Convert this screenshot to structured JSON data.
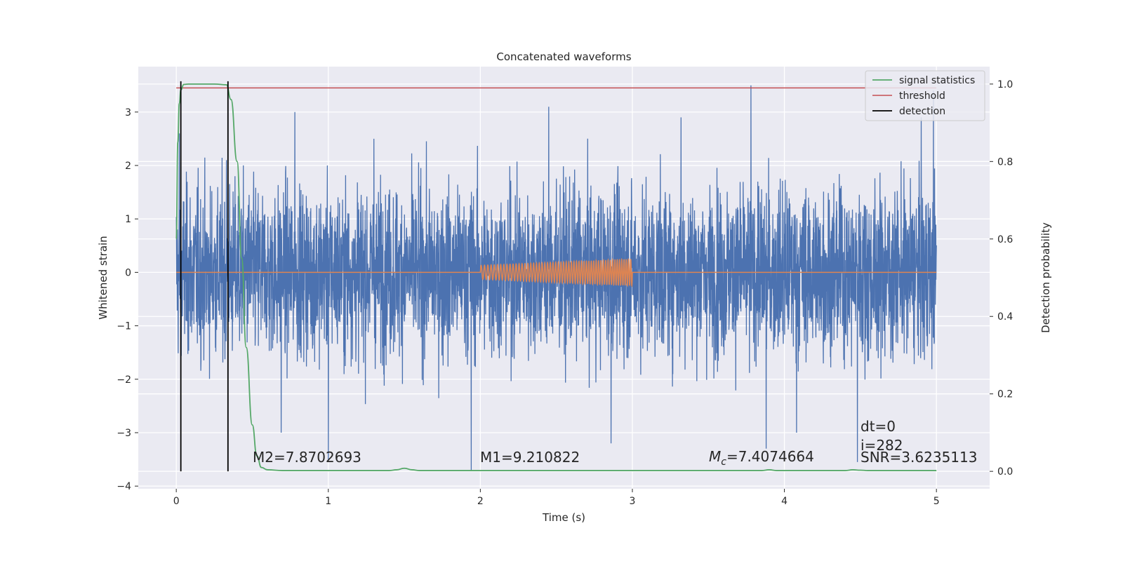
{
  "chart_data": {
    "type": "line",
    "title": "Concatenated waveforms",
    "xlabel": "Time (s)",
    "ylabel": "Whitened strain",
    "y2label": "Detection probability",
    "xlim": [
      -0.25,
      5.35
    ],
    "ylim": [
      -4.05,
      3.85
    ],
    "y2lim": [
      -0.045,
      1.045
    ],
    "xticks": [
      0,
      1,
      2,
      3,
      4,
      5
    ],
    "yticks": [
      -4,
      -3,
      -2,
      -1,
      0,
      1,
      2,
      3
    ],
    "y2ticks": [
      0.0,
      0.2,
      0.4,
      0.6,
      0.8,
      1.0
    ],
    "xtick_labels": [
      "0",
      "1",
      "2",
      "3",
      "4",
      "5"
    ],
    "ytick_labels": [
      "−4",
      "−3",
      "−2",
      "−1",
      "0",
      "1",
      "2",
      "3"
    ],
    "y2tick_labels": [
      "0.0",
      "0.2",
      "0.4",
      "0.6",
      "0.8",
      "1.0"
    ],
    "grid": true,
    "legend_position": "top-right",
    "series": [
      {
        "name": "signal statistics",
        "axis": "right",
        "color": "#55a868",
        "x": [
          0.0,
          0.01,
          0.02,
          0.03,
          0.05,
          0.08,
          0.15,
          0.25,
          0.33,
          0.36,
          0.4,
          0.43,
          0.46,
          0.5,
          0.53,
          0.56,
          0.6,
          0.7,
          1.0,
          1.4,
          1.45,
          1.5,
          1.55,
          1.6,
          2.0,
          2.5,
          3.0,
          3.5,
          3.85,
          3.9,
          3.95,
          4.4,
          4.45,
          4.5,
          4.55,
          5.0
        ],
        "y": [
          0.6,
          0.85,
          0.95,
          0.985,
          0.999,
          1.0,
          1.0,
          1.0,
          0.998,
          0.96,
          0.8,
          0.55,
          0.32,
          0.12,
          0.04,
          0.01,
          0.004,
          0.002,
          0.002,
          0.002,
          0.004,
          0.008,
          0.004,
          0.002,
          0.002,
          0.002,
          0.002,
          0.002,
          0.002,
          0.004,
          0.002,
          0.002,
          0.004,
          0.003,
          0.002,
          0.002
        ]
      },
      {
        "name": "threshold",
        "axis": "right",
        "color": "#c44e52",
        "x": [
          0.0,
          5.0
        ],
        "y": [
          0.99,
          0.99
        ]
      },
      {
        "name": "detection",
        "axis": "right",
        "color": "#000000",
        "segments": [
          {
            "x": 0.03,
            "y": [
              0.0,
              1.0
            ]
          },
          {
            "x": 0.34,
            "y": [
              0.0,
              1.0
            ]
          }
        ]
      },
      {
        "name": "",
        "axis": "left",
        "color": "#4c72b0",
        "description_values": "whitened noise strain, roughly within ±2.5 with spikes to ±3.5, spanning 0 to 5 s",
        "x_range": [
          0.0,
          5.0
        ],
        "spike_x": [
          0.02,
          0.33,
          0.69,
          0.78,
          1.0,
          1.3,
          1.94,
          2.45,
          2.86,
          3.32,
          3.78,
          3.88,
          4.08,
          4.48,
          4.9,
          4.98
        ],
        "spike_y": [
          2.6,
          2.1,
          -3.0,
          3.0,
          -3.5,
          2.5,
          -3.7,
          3.1,
          -3.2,
          2.9,
          3.5,
          -3.3,
          -3.0,
          -3.55,
          2.9,
          3.4
        ]
      },
      {
        "name": "",
        "axis": "left",
        "color": "#dd8452",
        "description_values": "injected chirp signal, zero outside 2–3 s, oscillating with amplitude growing from about 0.15 to 0.25 between 2 and 3 s",
        "x_range": [
          0.0,
          5.0
        ],
        "chirp_start": 2.0,
        "chirp_end": 3.0,
        "amplitude_start": 0.13,
        "amplitude_end": 0.25
      }
    ],
    "legend": [
      "signal statistics",
      "threshold",
      "detection"
    ],
    "annotations": {
      "m2": "M2=7.8702693",
      "m1": "M1=9.210822",
      "mc_symbol": "M",
      "mc_sub": "c",
      "mc_value": "=7.4074664",
      "dt": "dt=0",
      "i": "i=282",
      "snr": "SNR=3.6235113"
    }
  }
}
